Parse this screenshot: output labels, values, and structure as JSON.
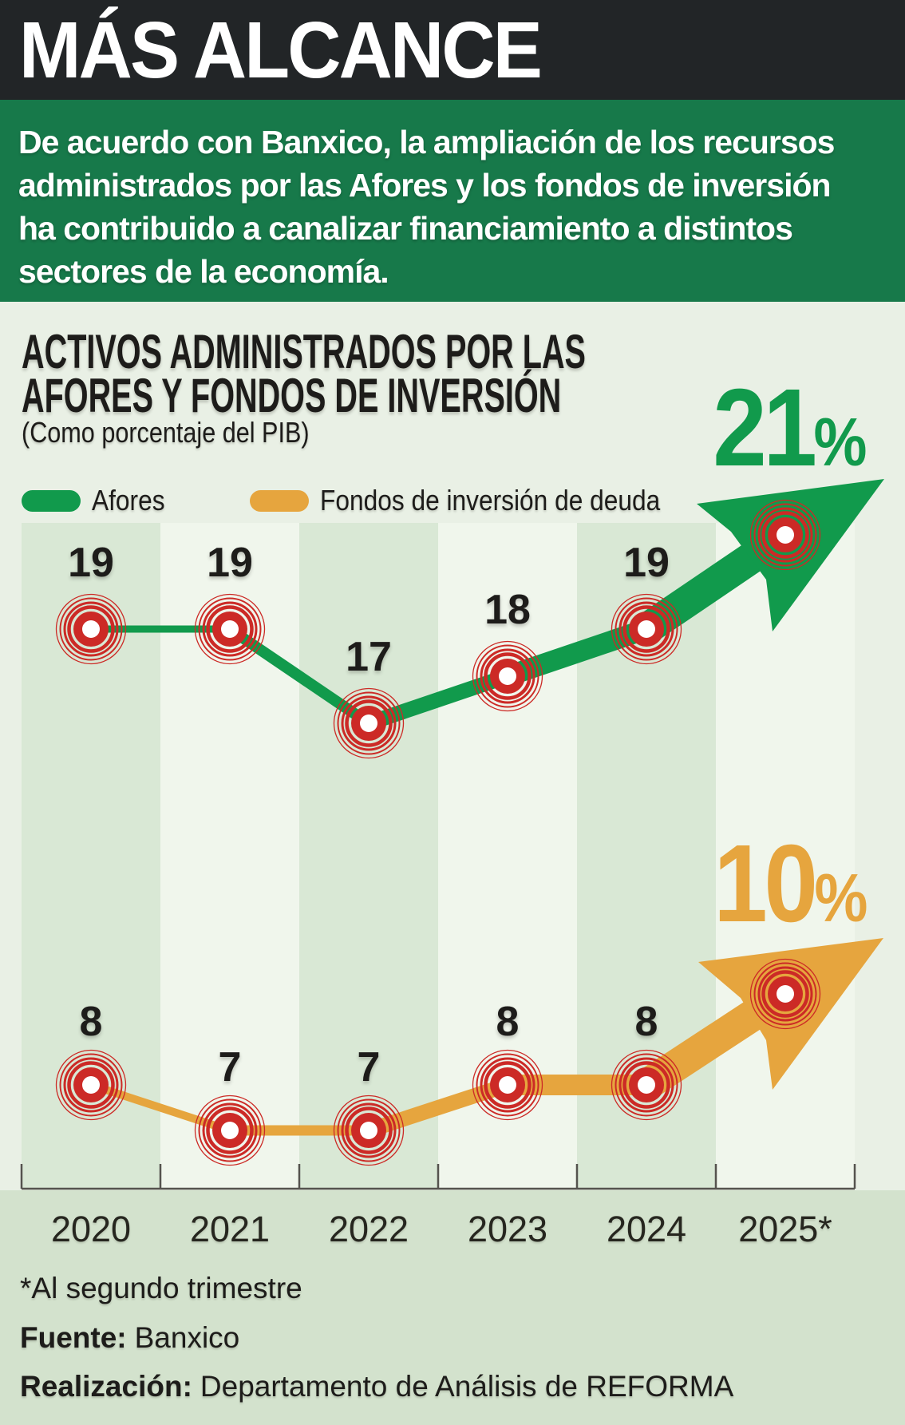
{
  "header": {
    "title": "MÁS ALCANCE"
  },
  "banner": {
    "lines": [
      "De acuerdo con Banxico, la ampliación de los recursos",
      "administrados por las Afores y los fondos de inversión",
      "ha contribuido a canalizar financiamiento a distintos",
      "sectores de la economía."
    ]
  },
  "chart": {
    "title_lines": [
      "ACTIVOS ADMINISTRADOS POR LAS",
      "AFORES Y FONDOS DE INVERSIÓN"
    ],
    "subtitle": "(Como porcentaje del PIB)",
    "marker_color": "#cc2a26",
    "axis_color": "#55534e"
  },
  "chart_data": {
    "type": "line",
    "title": "ACTIVOS ADMINISTRADOS POR LAS AFORES Y FONDOS DE INVERSIÓN",
    "subtitle": "(Como porcentaje del PIB)",
    "categories": [
      "2020",
      "2021",
      "2022",
      "2023",
      "2024",
      "2025*"
    ],
    "series": [
      {
        "name": "Afores",
        "color": "#119a4c",
        "values": [
          19,
          19,
          17,
          18,
          19,
          21
        ],
        "end_label": "21%"
      },
      {
        "name": "Fondos de inversión de deuda",
        "color": "#e6a53e",
        "values": [
          8,
          7,
          7,
          8,
          8,
          10
        ],
        "end_label": "10%"
      }
    ],
    "ylim": [
      0,
      25
    ],
    "grid": false,
    "legend_position": "top"
  },
  "footer": {
    "note": "*Al segundo trimestre",
    "source_label": "Fuente:",
    "source": "Banxico",
    "credit_label": "Realización:",
    "credit": "Departamento de Análisis de REFORMA"
  }
}
